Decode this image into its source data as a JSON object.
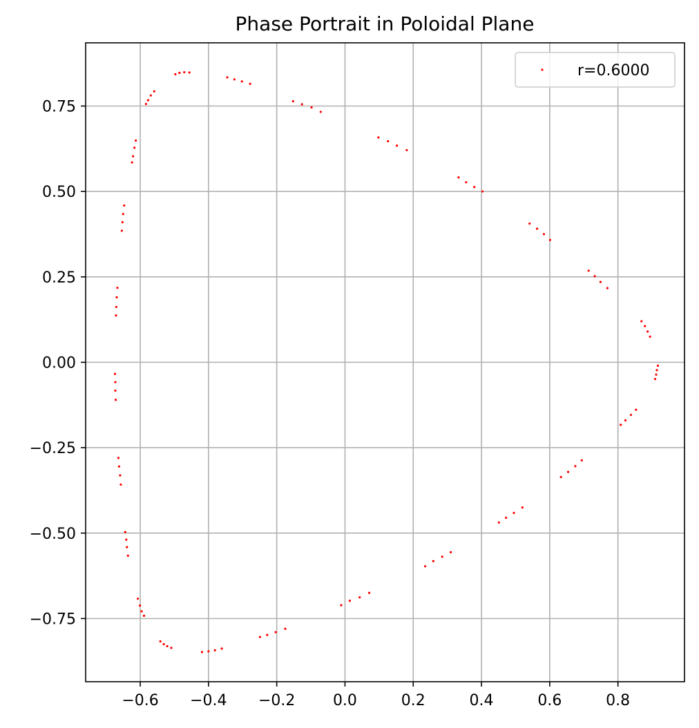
{
  "chart_data": {
    "type": "scatter",
    "title": "Phase Portrait in Poloidal Plane",
    "xlabel": "",
    "ylabel": "",
    "xlim": [
      -0.76,
      0.995
    ],
    "ylim": [
      -0.935,
      0.935
    ],
    "xticks": [
      -0.6,
      -0.4,
      -0.2,
      0.0,
      0.2,
      0.4,
      0.6,
      0.8
    ],
    "xtick_labels": [
      "−0.6",
      "−0.4",
      "−0.2",
      "0.0",
      "0.2",
      "0.4",
      "0.6",
      "0.8"
    ],
    "yticks": [
      -0.75,
      -0.5,
      -0.25,
      0.0,
      0.25,
      0.5,
      0.75
    ],
    "ytick_labels": [
      "−0.75",
      "−0.50",
      "−0.25",
      "0.00",
      "0.25",
      "0.50",
      "0.75"
    ],
    "grid": true,
    "legend_position": "upper right",
    "series": [
      {
        "name": "r=0.6000",
        "color": "#ff0000",
        "marker": "point",
        "points": [
          [
            0.917,
            -0.01
          ],
          [
            0.914,
            -0.023
          ],
          [
            0.912,
            -0.036
          ],
          [
            0.909,
            -0.049
          ],
          [
            0.869,
            0.12
          ],
          [
            0.879,
            0.106
          ],
          [
            0.887,
            0.09
          ],
          [
            0.894,
            0.075
          ],
          [
            0.714,
            0.268
          ],
          [
            0.732,
            0.252
          ],
          [
            0.749,
            0.235
          ],
          [
            0.769,
            0.217
          ],
          [
            0.541,
            0.406
          ],
          [
            0.563,
            0.391
          ],
          [
            0.583,
            0.375
          ],
          [
            0.601,
            0.358
          ],
          [
            0.333,
            0.541
          ],
          [
            0.355,
            0.527
          ],
          [
            0.379,
            0.513
          ],
          [
            0.403,
            0.5
          ],
          [
            0.098,
            0.658
          ],
          [
            0.126,
            0.647
          ],
          [
            0.152,
            0.634
          ],
          [
            0.181,
            0.621
          ],
          [
            -0.152,
            0.764
          ],
          [
            -0.126,
            0.755
          ],
          [
            -0.098,
            0.746
          ],
          [
            -0.071,
            0.733
          ],
          [
            -0.345,
            0.834
          ],
          [
            -0.324,
            0.828
          ],
          [
            -0.302,
            0.822
          ],
          [
            -0.278,
            0.815
          ],
          [
            -0.497,
            0.843
          ],
          [
            -0.485,
            0.847
          ],
          [
            -0.471,
            0.849
          ],
          [
            -0.456,
            0.848
          ],
          [
            -0.583,
            0.756
          ],
          [
            -0.577,
            0.767
          ],
          [
            -0.569,
            0.781
          ],
          [
            -0.559,
            0.793
          ],
          [
            -0.624,
            0.585
          ],
          [
            -0.621,
            0.603
          ],
          [
            -0.617,
            0.628
          ],
          [
            -0.613,
            0.649
          ],
          [
            -0.654,
            0.385
          ],
          [
            -0.652,
            0.41
          ],
          [
            -0.65,
            0.434
          ],
          [
            -0.647,
            0.459
          ],
          [
            -0.671,
            0.137
          ],
          [
            -0.67,
            0.162
          ],
          [
            -0.669,
            0.19
          ],
          [
            -0.667,
            0.218
          ],
          [
            -0.674,
            -0.034
          ],
          [
            -0.673,
            -0.058
          ],
          [
            -0.673,
            -0.083
          ],
          [
            -0.672,
            -0.11
          ],
          [
            -0.664,
            -0.28
          ],
          [
            -0.662,
            -0.305
          ],
          [
            -0.659,
            -0.331
          ],
          [
            -0.657,
            -0.358
          ],
          [
            -0.644,
            -0.497
          ],
          [
            -0.641,
            -0.519
          ],
          [
            -0.639,
            -0.541
          ],
          [
            -0.636,
            -0.566
          ],
          [
            -0.607,
            -0.692
          ],
          [
            -0.601,
            -0.712
          ],
          [
            -0.596,
            -0.729
          ],
          [
            -0.589,
            -0.742
          ],
          [
            -0.541,
            -0.817
          ],
          [
            -0.531,
            -0.825
          ],
          [
            -0.521,
            -0.831
          ],
          [
            -0.509,
            -0.836
          ],
          [
            -0.419,
            -0.848
          ],
          [
            -0.4,
            -0.846
          ],
          [
            -0.381,
            -0.843
          ],
          [
            -0.361,
            -0.838
          ],
          [
            -0.249,
            -0.804
          ],
          [
            -0.228,
            -0.798
          ],
          [
            -0.203,
            -0.79
          ],
          [
            -0.175,
            -0.78
          ],
          [
            -0.011,
            -0.711
          ],
          [
            0.014,
            -0.698
          ],
          [
            0.043,
            -0.688
          ],
          [
            0.071,
            -0.675
          ],
          [
            0.235,
            -0.597
          ],
          [
            0.259,
            -0.582
          ],
          [
            0.285,
            -0.569
          ],
          [
            0.31,
            -0.556
          ],
          [
            0.451,
            -0.469
          ],
          [
            0.472,
            -0.455
          ],
          [
            0.495,
            -0.441
          ],
          [
            0.52,
            -0.425
          ],
          [
            0.633,
            -0.336
          ],
          [
            0.654,
            -0.321
          ],
          [
            0.675,
            -0.304
          ],
          [
            0.694,
            -0.287
          ],
          [
            0.808,
            -0.183
          ],
          [
            0.822,
            -0.17
          ],
          [
            0.838,
            -0.154
          ],
          [
            0.853,
            -0.139
          ]
        ]
      }
    ]
  }
}
